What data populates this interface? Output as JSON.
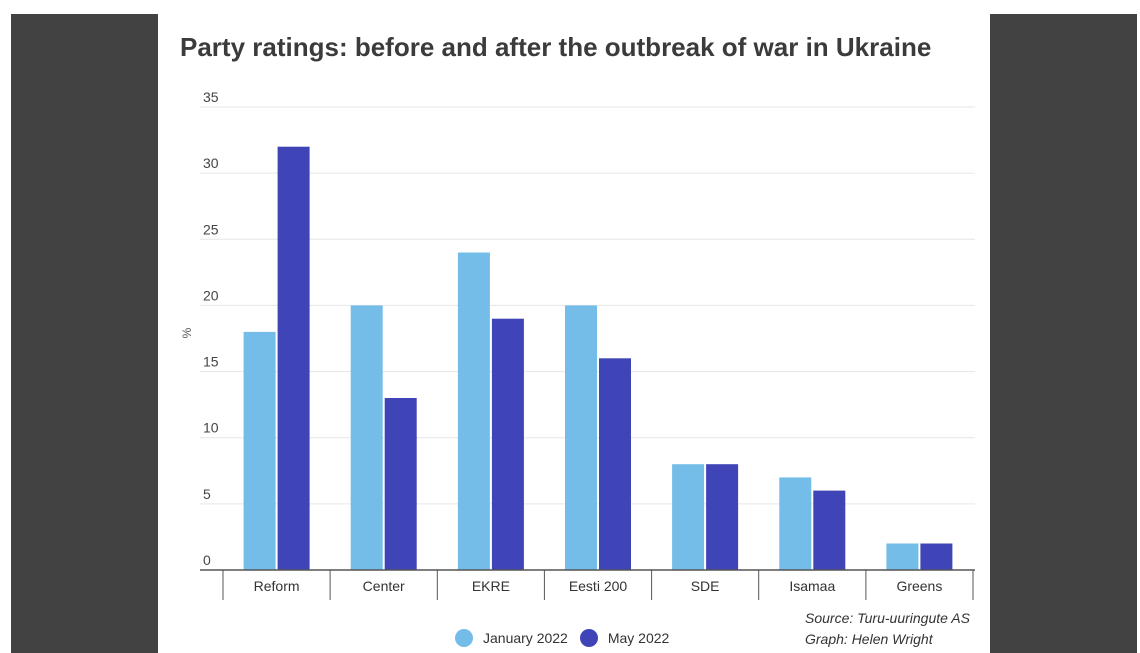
{
  "title": "Party ratings: before and after the outbreak of war in Ukraine",
  "source_line": "Source: Turu-uuringute AS",
  "credit_line": "Graph: Helen Wright",
  "colors": {
    "january": "#74bde8",
    "may": "#3f44b7",
    "grid": "#e6e6e6",
    "axis": "#555555",
    "side_panels": "#424242"
  },
  "chart_data": {
    "type": "bar",
    "title": "Party ratings: before and after the outbreak of war in Ukraine",
    "xlabel": "",
    "ylabel": "%",
    "ylim": [
      0,
      35
    ],
    "yticks": [
      0,
      5,
      10,
      15,
      20,
      25,
      30,
      35
    ],
    "grid": true,
    "legend_position": "bottom",
    "categories": [
      "Reform",
      "Center",
      "EKRE",
      "Eesti 200",
      "SDE",
      "Isamaa",
      "Greens"
    ],
    "series": [
      {
        "name": "January 2022",
        "values": [
          18,
          20,
          24,
          20,
          8,
          7,
          2
        ]
      },
      {
        "name": "May 2022",
        "values": [
          32,
          13,
          19,
          16,
          8,
          6,
          2
        ]
      }
    ]
  }
}
